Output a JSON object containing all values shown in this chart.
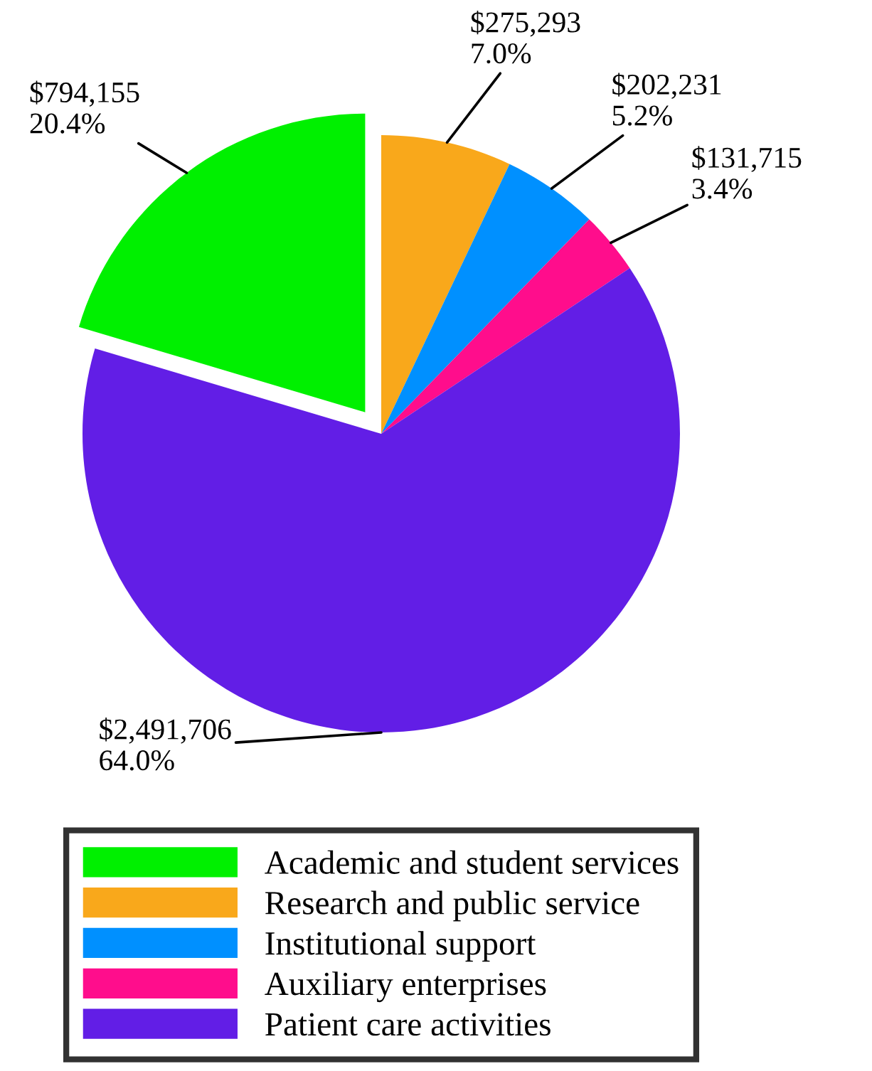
{
  "chart_data": {
    "type": "pie",
    "categories": [
      "Academic and student services",
      "Research and public service",
      "Institutional support",
      "Auxiliary enterprises",
      "Patient care activities"
    ],
    "values": [
      794155,
      275293,
      202231,
      131715,
      2491706
    ],
    "colors": [
      "#00f000",
      "#f9a81b",
      "#0090ff",
      "#ff0d8c",
      "#621ee6"
    ],
    "value_labels": [
      "$794,155\n20.4%",
      "$275,293\n7.0%",
      "$202,231\n5.2%",
      "$131,715\n3.4%",
      "$2,491,706\n64.0%"
    ],
    "legend": "bottom"
  }
}
